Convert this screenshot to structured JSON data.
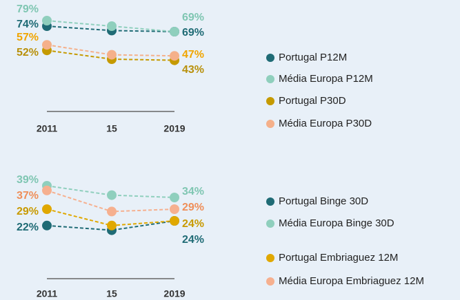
{
  "chart_data": [
    {
      "type": "line",
      "categories": [
        "2011",
        "15",
        "2019"
      ],
      "ylim": [
        40,
        85
      ],
      "series": [
        {
          "name": "Portugal P12M",
          "color": "#1f6b75",
          "label_color": "#1f6b75",
          "values": [
            74,
            70,
            69
          ],
          "value_labels": [
            "74%",
            null,
            "69%"
          ]
        },
        {
          "name": "Média Europa P12M",
          "color": "#8fcfbd",
          "label_color": "#7fc6b2",
          "values": [
            79,
            74,
            69
          ],
          "value_labels": [
            "79%",
            null,
            "69%"
          ]
        },
        {
          "name": "Portugal P30D",
          "color": "#c59a00",
          "label_color": "#b8900a",
          "values": [
            52,
            44,
            43
          ],
          "value_labels": [
            "52%",
            null,
            "43%"
          ]
        },
        {
          "name": "Média Europa P30D",
          "color": "#f5b08a",
          "label_color": "#f0a500",
          "values": [
            57,
            48,
            47
          ],
          "value_labels": [
            "57%",
            null,
            "47%"
          ]
        }
      ]
    },
    {
      "type": "line",
      "categories": [
        "2011",
        "15",
        "2019"
      ],
      "ylim": [
        18,
        42
      ],
      "series": [
        {
          "name": "Portugal Binge 30D",
          "color": "#1f6b75",
          "label_color": "#1f6b75",
          "values": [
            22,
            20,
            24
          ],
          "value_labels": [
            "22%",
            null,
            "24%"
          ]
        },
        {
          "name": "Média Europa Binge 30D",
          "color": "#8fcfbd",
          "label_color": "#7fc6b2",
          "values": [
            39,
            35,
            34
          ],
          "value_labels": [
            "39%",
            null,
            "34%"
          ]
        },
        {
          "name": "Portugal Embriaguez 12M",
          "color": "#e0a800",
          "label_color": "#c89a00",
          "values": [
            29,
            22,
            24
          ],
          "value_labels": [
            "29%",
            null,
            "24%"
          ]
        },
        {
          "name": "Média Europa Embriaguez 12M",
          "color": "#f6b08f",
          "label_color": "#ef8f5a",
          "values": [
            37,
            28,
            29
          ],
          "value_labels": [
            "37%",
            null,
            "29%"
          ]
        }
      ]
    }
  ]
}
